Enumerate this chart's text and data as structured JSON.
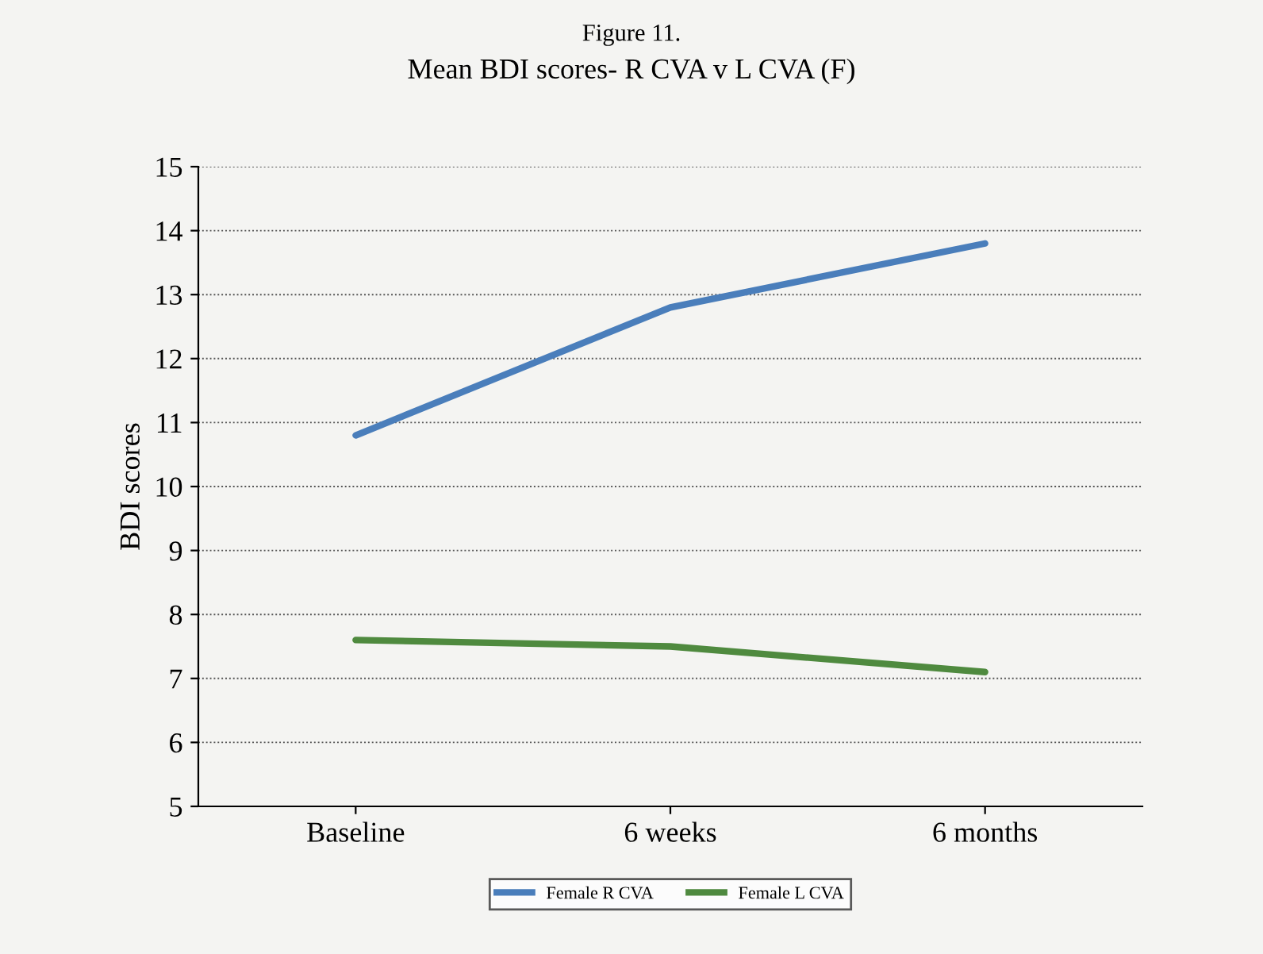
{
  "chart_data": {
    "type": "line",
    "title": "Figure 11.",
    "subtitle": "Mean BDI scores- R CVA v L CVA (F)",
    "ylabel": "BDI scores",
    "categories": [
      "Baseline",
      "6 weeks",
      "6 months"
    ],
    "series": [
      {
        "name": "Female R CVA",
        "color": "#4a7ebb",
        "values": [
          10.8,
          12.8,
          13.8
        ]
      },
      {
        "name": "Female L CVA",
        "color": "#4f8a3f",
        "values": [
          7.6,
          7.5,
          7.1
        ]
      }
    ],
    "ylim": [
      5,
      15
    ],
    "yticks": [
      5,
      6,
      7,
      8,
      9,
      10,
      11,
      12,
      13,
      14,
      15
    ],
    "grid": "y",
    "legend": "bottom",
    "marker": "none",
    "line_style": "solid"
  }
}
